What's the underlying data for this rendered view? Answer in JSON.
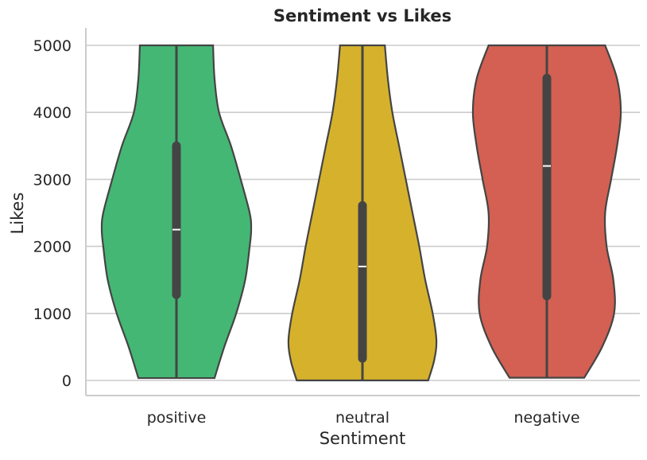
{
  "chart_data": {
    "type": "violin",
    "title": "Sentiment vs Likes",
    "xlabel": "Sentiment",
    "ylabel": "Likes",
    "ylim": [
      -250,
      5250
    ],
    "yticks": [
      0,
      1000,
      2000,
      3000,
      4000,
      5000
    ],
    "grid": "horizontal",
    "categories": [
      "positive",
      "neutral",
      "negative"
    ],
    "colors": [
      "#44b774",
      "#d6b22c",
      "#d36052"
    ],
    "series": [
      {
        "category": "positive",
        "min": 35,
        "q1": 1280,
        "median": 2250,
        "q3": 3500,
        "max": 5000,
        "density": [
          [
            35,
            0.51
          ],
          [
            500,
            0.64
          ],
          [
            1000,
            0.8
          ],
          [
            1500,
            0.92
          ],
          [
            2000,
            0.98
          ],
          [
            2250,
            1.0
          ],
          [
            2500,
            0.98
          ],
          [
            3000,
            0.86
          ],
          [
            3500,
            0.73
          ],
          [
            4000,
            0.57
          ],
          [
            4500,
            0.51
          ],
          [
            5000,
            0.49
          ]
        ]
      },
      {
        "category": "neutral",
        "min": 0,
        "q1": 330,
        "median": 1700,
        "q3": 2610,
        "max": 5000,
        "density": [
          [
            0,
            0.88
          ],
          [
            300,
            0.96
          ],
          [
            600,
            0.99
          ],
          [
            1000,
            0.94
          ],
          [
            1500,
            0.84
          ],
          [
            2000,
            0.76
          ],
          [
            2500,
            0.67
          ],
          [
            3000,
            0.58
          ],
          [
            3500,
            0.49
          ],
          [
            4000,
            0.4
          ],
          [
            4500,
            0.34
          ],
          [
            5000,
            0.3
          ]
        ]
      },
      {
        "category": "negative",
        "min": 40,
        "q1": 1260,
        "median": 3200,
        "q3": 4510,
        "max": 5000,
        "density": [
          [
            40,
            0.5
          ],
          [
            500,
            0.74
          ],
          [
            1000,
            0.9
          ],
          [
            1500,
            0.89
          ],
          [
            2000,
            0.8
          ],
          [
            2500,
            0.78
          ],
          [
            3000,
            0.86
          ],
          [
            3500,
            0.94
          ],
          [
            4000,
            0.99
          ],
          [
            4500,
            0.94
          ],
          [
            5000,
            0.78
          ]
        ]
      }
    ]
  }
}
